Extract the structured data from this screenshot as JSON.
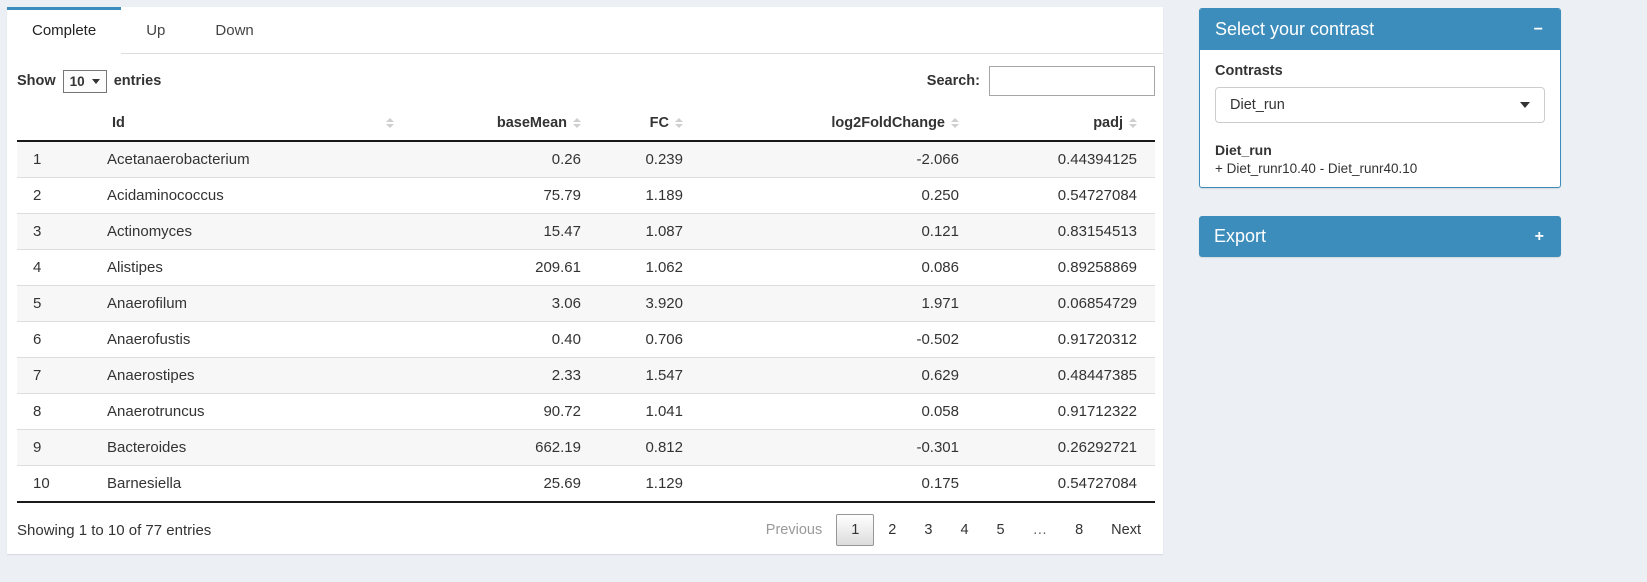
{
  "tabs": [
    {
      "label": "Complete",
      "active": true
    },
    {
      "label": "Up",
      "active": false
    },
    {
      "label": "Down",
      "active": false
    }
  ],
  "table_controls": {
    "show_label": "Show",
    "page_length": "10",
    "entries_label": "entries",
    "search_label": "Search:",
    "search_value": ""
  },
  "table": {
    "columns": [
      "",
      "Id",
      "baseMean",
      "FC",
      "log2FoldChange",
      "padj"
    ],
    "rows": [
      {
        "index": "1",
        "id": "Acetanaerobacterium",
        "baseMean": "0.26",
        "fc": "0.239",
        "log2fc": "-2.066",
        "padj": "0.44394125"
      },
      {
        "index": "2",
        "id": "Acidaminococcus",
        "baseMean": "75.79",
        "fc": "1.189",
        "log2fc": "0.250",
        "padj": "0.54727084"
      },
      {
        "index": "3",
        "id": "Actinomyces",
        "baseMean": "15.47",
        "fc": "1.087",
        "log2fc": "0.121",
        "padj": "0.83154513"
      },
      {
        "index": "4",
        "id": "Alistipes",
        "baseMean": "209.61",
        "fc": "1.062",
        "log2fc": "0.086",
        "padj": "0.89258869"
      },
      {
        "index": "5",
        "id": "Anaerofilum",
        "baseMean": "3.06",
        "fc": "3.920",
        "log2fc": "1.971",
        "padj": "0.06854729"
      },
      {
        "index": "6",
        "id": "Anaerofustis",
        "baseMean": "0.40",
        "fc": "0.706",
        "log2fc": "-0.502",
        "padj": "0.91720312"
      },
      {
        "index": "7",
        "id": "Anaerostipes",
        "baseMean": "2.33",
        "fc": "1.547",
        "log2fc": "0.629",
        "padj": "0.48447385"
      },
      {
        "index": "8",
        "id": "Anaerotruncus",
        "baseMean": "90.72",
        "fc": "1.041",
        "log2fc": "0.058",
        "padj": "0.91712322"
      },
      {
        "index": "9",
        "id": "Bacteroides",
        "baseMean": "662.19",
        "fc": "0.812",
        "log2fc": "-0.301",
        "padj": "0.26292721"
      },
      {
        "index": "10",
        "id": "Barnesiella",
        "baseMean": "25.69",
        "fc": "1.129",
        "log2fc": "0.175",
        "padj": "0.54727084"
      }
    ]
  },
  "footer": {
    "info": "Showing 1 to 10 of 77 entries",
    "pagination": [
      "Previous",
      "1",
      "2",
      "3",
      "4",
      "5",
      "…",
      "8",
      "Next"
    ],
    "current_page": "1"
  },
  "contrast_box": {
    "title": "Select your contrast",
    "collapse_icon": "−",
    "contrasts_label": "Contrasts",
    "selected_contrast": "Diet_run",
    "contrast_name": "Diet_run",
    "contrast_formula": "+ Diet_runr10.40 - Diet_runr40.10"
  },
  "export_box": {
    "title": "Export",
    "collapse_icon": "+"
  },
  "colors": {
    "accent": "#3c8dbc",
    "page_background": "#ecf0f5",
    "stripe": "#f7f7f7"
  }
}
